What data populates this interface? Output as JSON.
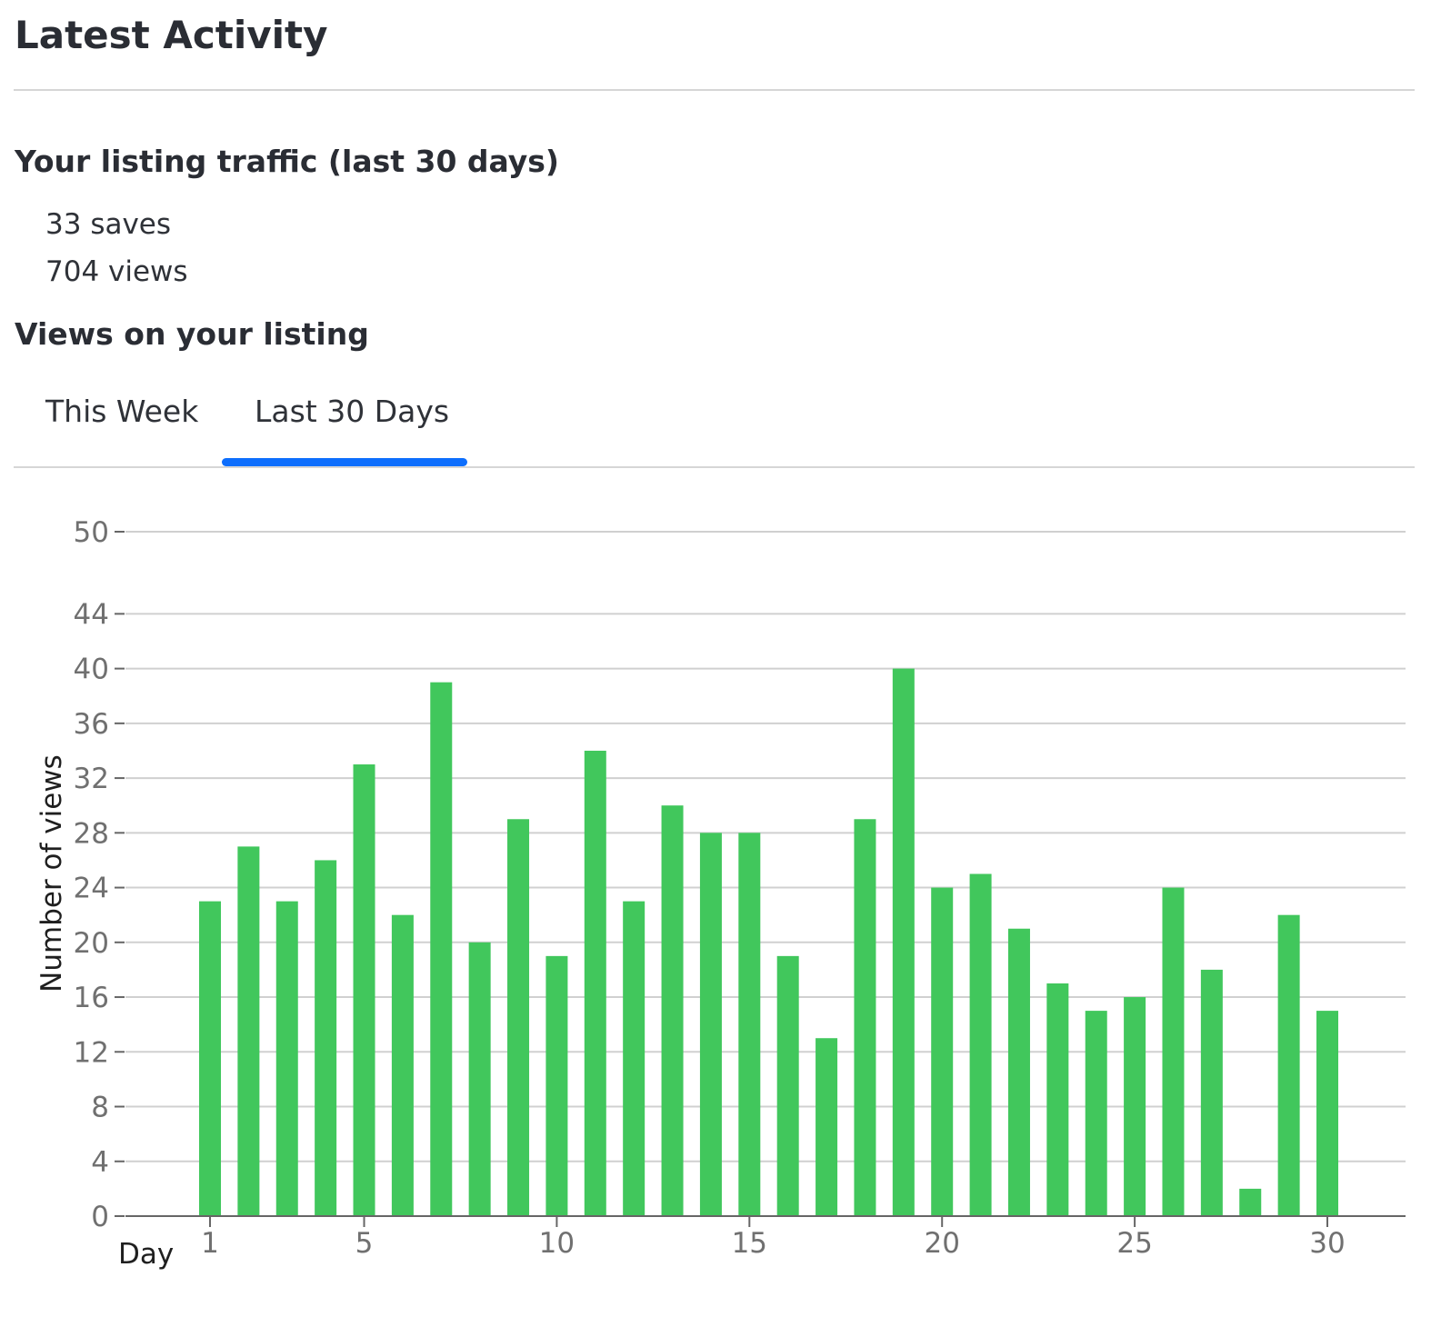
{
  "page": {
    "title": "Latest Activity"
  },
  "traffic": {
    "heading": "Your listing traffic (last 30 days)",
    "saves_count": "33",
    "saves_label": "saves",
    "views_count": "704",
    "views_label": "views"
  },
  "views_section": {
    "heading": "Views on your listing",
    "tabs": [
      {
        "label": "This Week",
        "active": false
      },
      {
        "label": "Last 30 Days",
        "active": true
      }
    ]
  },
  "colors": {
    "bar": "#41c75c",
    "tab_active_indicator": "#0d6efd",
    "grid": "#d0d0d0",
    "axis": "#666666",
    "tick_text": "#707070"
  },
  "chart_data": {
    "type": "bar",
    "title": "",
    "xlabel": "Day",
    "ylabel": "Number of views",
    "x": [
      1,
      2,
      3,
      4,
      5,
      6,
      7,
      8,
      9,
      10,
      11,
      12,
      13,
      14,
      15,
      16,
      17,
      18,
      19,
      20,
      21,
      22,
      23,
      24,
      25,
      26,
      27,
      28,
      29,
      30
    ],
    "values": [
      23,
      27,
      23,
      26,
      33,
      22,
      39,
      20,
      29,
      19,
      34,
      23,
      30,
      28,
      28,
      19,
      13,
      29,
      40,
      24,
      25,
      21,
      17,
      15,
      16,
      24,
      18,
      2,
      22,
      15
    ],
    "x_ticks": [
      1,
      5,
      10,
      15,
      20,
      25,
      30
    ],
    "y_ticks": [
      0,
      4,
      8,
      12,
      16,
      20,
      24,
      28,
      32,
      36,
      40,
      44,
      50
    ],
    "ylim": [
      0,
      50
    ],
    "grid": true
  }
}
